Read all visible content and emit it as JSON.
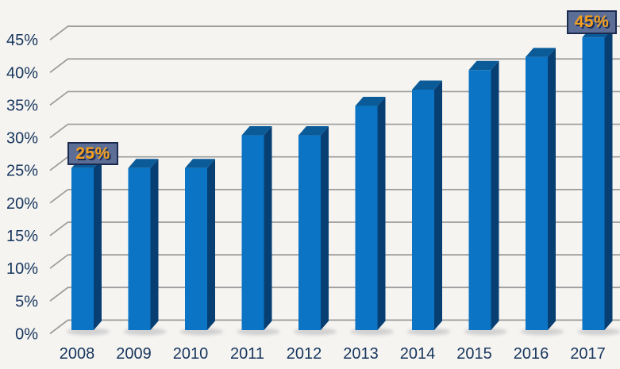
{
  "chart_data": {
    "type": "bar",
    "style": "3d-bar",
    "title": "",
    "xlabel": "",
    "ylabel": "",
    "categories": [
      "2008",
      "2009",
      "2010",
      "2011",
      "2012",
      "2013",
      "2014",
      "2015",
      "2016",
      "2017"
    ],
    "values": [
      25,
      25,
      25,
      30,
      30,
      34.5,
      37,
      40,
      42,
      45
    ],
    "unit": "%",
    "ylim": [
      0,
      45
    ],
    "ytick_step": 5,
    "ytick_labels": [
      "0%",
      "5%",
      "10%",
      "15%",
      "20%",
      "25%",
      "30%",
      "35%",
      "40%",
      "45%"
    ],
    "grid": true,
    "legend_position": "none",
    "callouts": [
      {
        "category": "2008",
        "label": "25%",
        "value": 25
      },
      {
        "category": "2017",
        "label": "45%",
        "value": 45
      }
    ],
    "colors": {
      "background": "#f5f4f1",
      "bar_front": "#0b74c4",
      "bar_top": "#0b5b99",
      "bar_side": "#083f73",
      "gridline": "#9b9b9b",
      "axis_text": "#17365d",
      "callout_fill": "#5d6e96",
      "callout_border": "#1b2b50",
      "callout_text": "#f6a01d"
    }
  }
}
